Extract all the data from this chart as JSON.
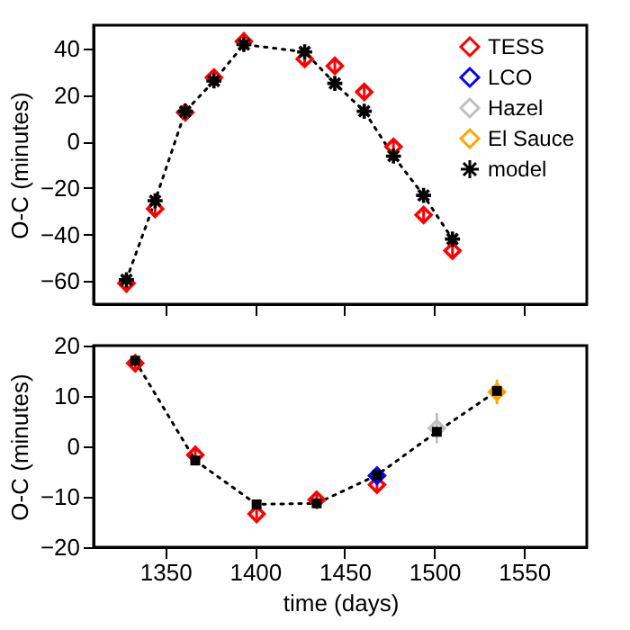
{
  "chart_data": [
    {
      "type": "scatter",
      "ylabel": "O-C (minutes)",
      "xlim": [
        1310,
        1585
      ],
      "xticks": [
        1350,
        1400,
        1450,
        1500,
        1550
      ],
      "ylim": [
        -70,
        50
      ],
      "yticks": [
        -60,
        -40,
        -20,
        0,
        20,
        40
      ],
      "grid": false,
      "legend": "top right",
      "tick_labels": "y",
      "series": [
        {
          "name": "TESS",
          "color": "#ff0000",
          "marker": "diamond",
          "x": [
            1328.3,
            1344.3,
            1361.1,
            1377.1,
            1393.8,
            1427.7,
            1444.5,
            1460.9,
            1477.2,
            1494,
            1510.1
          ],
          "values": [
            -61,
            -29,
            12.5,
            27.5,
            43,
            35.5,
            32.5,
            21.3,
            -2.3,
            -31.6,
            -47
          ],
          "errors": [
            4,
            3,
            3,
            3,
            4,
            3,
            3,
            3,
            3,
            3,
            3
          ]
        },
        {
          "name": "LCO",
          "color": "#0000ff",
          "marker": "diamond"
        },
        {
          "name": "Hazel",
          "color": "#c0c0c0",
          "marker": "diamond"
        },
        {
          "name": "El Sauce",
          "color": "#ffa500",
          "marker": "diamond"
        },
        {
          "name": "model",
          "type": "line",
          "color": "#000000",
          "marker": "cross",
          "line_style": "dotted",
          "x": [
            1328.3,
            1344.3,
            1361.1,
            1377.1,
            1393.8,
            1427.7,
            1444.5,
            1460.9,
            1477.2,
            1494,
            1510.1
          ],
          "values": [
            -59.5,
            -25.5,
            12.9,
            26,
            41.7,
            38.5,
            25,
            13,
            -6.3,
            -23.2,
            -42
          ]
        }
      ]
    },
    {
      "type": "scatter",
      "xlabel": "time (days)",
      "ylabel": "O-C (minutes)",
      "xlim": [
        1310,
        1585
      ],
      "xticks": [
        1350,
        1400,
        1450,
        1500,
        1550
      ],
      "ylim": [
        -20,
        20
      ],
      "yticks": [
        -20,
        -10,
        0,
        10,
        20
      ],
      "grid": false,
      "legend": false,
      "series": [
        {
          "color": "#ff0000",
          "marker": "diamond",
          "x": [
            1333.2,
            1366.7,
            1400.9,
            1434.4,
            1468
          ],
          "values": [
            16.5,
            -1.7,
            -13.4,
            -10.6,
            -7.6
          ],
          "errors": [
            1,
            1,
            1,
            1,
            1
          ]
        },
        {
          "color": "#0000ff",
          "marker": "diamond",
          "x": [
            1468
          ],
          "values": [
            -5.8
          ],
          "errors": [
            1
          ]
        },
        {
          "color": "#c0c0c0",
          "marker": "diamond",
          "x": [
            1501.4
          ],
          "values": [
            3.6
          ],
          "errors": [
            3
          ]
        },
        {
          "color": "#ffa500",
          "marker": "diamond",
          "x": [
            1534.9
          ],
          "values": [
            10.8
          ],
          "errors": [
            2.4
          ]
        },
        {
          "type": "line",
          "color": "#000000",
          "marker": "square",
          "line_style": "dotted",
          "x": [
            1333.2,
            1366.7,
            1400.9,
            1434.4,
            1468,
            1501.4,
            1534.9
          ],
          "values": [
            17,
            -2.8,
            -11.5,
            -11.3,
            -5.7,
            2.9,
            11
          ]
        }
      ]
    }
  ]
}
